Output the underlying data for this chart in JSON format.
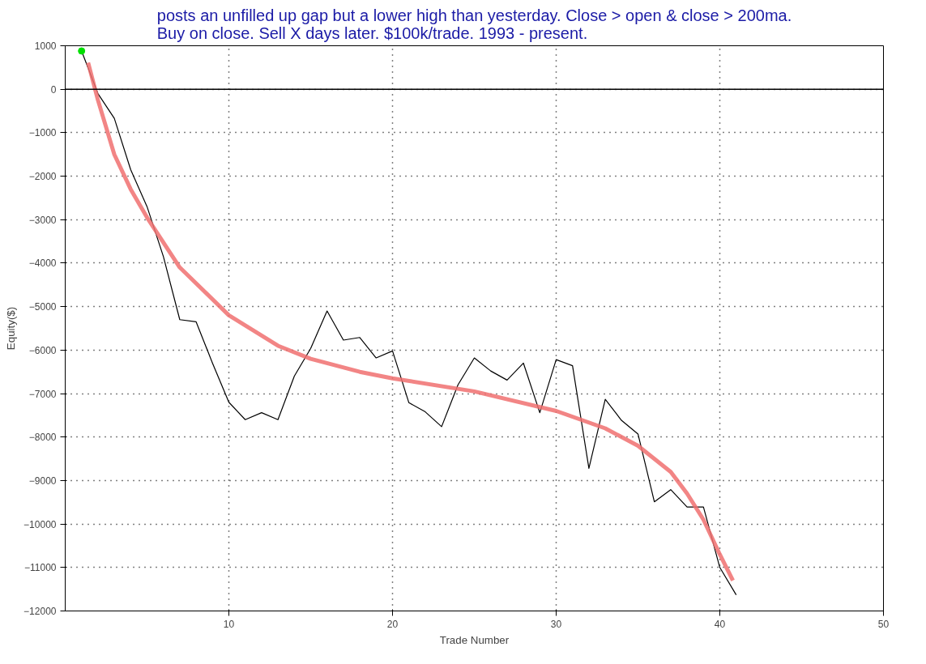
{
  "chart_data": {
    "type": "line",
    "title": "posts an unfilled up gap but a lower high than yesterday. Close > open & close > 200ma.\nBuy on close. Sell X days later. $100k/trade. 1993 - present.",
    "xlabel": "Trade Number",
    "ylabel": "Equity($)",
    "x": [
      1,
      2,
      3,
      4,
      5,
      6,
      7,
      8,
      9,
      10,
      11,
      12,
      13,
      14,
      15,
      16,
      17,
      18,
      19,
      20,
      21,
      22,
      23,
      24,
      25,
      26,
      27,
      28,
      29,
      30,
      31,
      32,
      33,
      34,
      35,
      36,
      37,
      38,
      39,
      40,
      41
    ],
    "series": [
      {
        "color": "#000000",
        "values": [
          880,
          -100,
          -670,
          -1850,
          -2700,
          -3850,
          -5300,
          -5350,
          -6300,
          -7200,
          -7600,
          -7440,
          -7600,
          -6600,
          -5960,
          -5100,
          -5770,
          -5710,
          -6180,
          -6020,
          -7210,
          -7420,
          -7760,
          -6800,
          -6180,
          -6480,
          -6690,
          -6300,
          -7440,
          -6220,
          -6360,
          -8720,
          -7130,
          -7620,
          -7930,
          -9490,
          -9210,
          -9610,
          -9610,
          -11000,
          -11630
        ]
      },
      {
        "type": "line",
        "color": "#f07070",
        "x": [
          1.4,
          2,
          3,
          4,
          5,
          7,
          10,
          13,
          15,
          18,
          20,
          25,
          30,
          33,
          35,
          37,
          38,
          39,
          40,
          40.8
        ],
        "values": [
          610,
          -250,
          -1500,
          -2300,
          -2950,
          -4100,
          -5200,
          -5900,
          -6200,
          -6500,
          -6650,
          -6950,
          -7400,
          -7800,
          -8200,
          -8800,
          -9300,
          -9900,
          -10700,
          -11300
        ]
      },
      {
        "type": "scatter",
        "color": "#00e000",
        "x": [
          1
        ],
        "values": [
          880
        ]
      }
    ],
    "xlim": [
      0,
      50
    ],
    "xticks": [
      10,
      20,
      30,
      40,
      50
    ],
    "ylim": [
      -12000,
      1000
    ],
    "yticks": [
      -12000,
      -11000,
      -10000,
      -9000,
      -8000,
      -7000,
      -6000,
      -5000,
      -4000,
      -3000,
      -2000,
      -1000,
      0,
      1000
    ],
    "ref_lines": [
      {
        "axis": "y",
        "value": 0,
        "color": "#000000",
        "line_style": "solid"
      }
    ],
    "grid": true,
    "line_style": "solid"
  }
}
